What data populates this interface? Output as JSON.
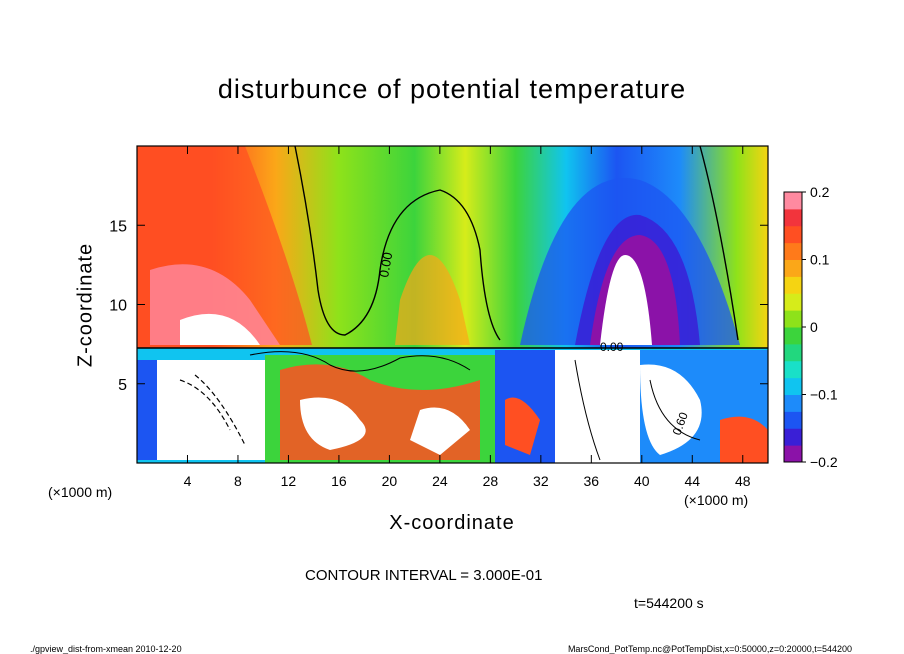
{
  "chart_data": {
    "type": "heatmap",
    "title": "disturbunce of potential temperature",
    "xlabel": "X-coordinate",
    "ylabel": "Z-coordinate",
    "x_unit_left": "(×1000 m)",
    "x_unit_right": "(×1000 m)",
    "xlim": [
      0,
      50
    ],
    "ylim": [
      0,
      20
    ],
    "x_ticks": [
      4,
      8,
      12,
      16,
      20,
      24,
      28,
      32,
      36,
      40,
      44,
      48
    ],
    "x_tick_labels": [
      "4",
      "8",
      "12",
      "16",
      "20",
      "24",
      "28",
      "32",
      "36",
      "40",
      "44",
      "48"
    ],
    "y_ticks": [
      5,
      10,
      15
    ],
    "y_tick_labels": [
      "5",
      "10",
      "15"
    ],
    "colorbar": {
      "range": [
        -0.2,
        0.2
      ],
      "ticks": [
        0.2,
        0.1,
        0,
        -0.1,
        -0.2
      ],
      "tick_labels": [
        "0.2",
        "0.1",
        "0",
        "−0.1",
        "−0.2"
      ],
      "colors": [
        "#8b12a8",
        "#3a1fd6",
        "#1c55f2",
        "#1d8bfa",
        "#10c4f0",
        "#19e0c8",
        "#22d77e",
        "#3cd43c",
        "#8ee21a",
        "#d6ec1a",
        "#f5d412",
        "#fba718",
        "#ff7a1a",
        "#ff4f22",
        "#f2343c",
        "#ff8aa0"
      ]
    },
    "contour_labels": [
      "0.00",
      "0.00",
      "0.60"
    ],
    "contour_interval_text": "CONTOUR INTERVAL = 3.000E-01",
    "time_text": "t=544200  s"
  },
  "footer": {
    "left": "./gpview_dist-from-xmean  2010-12-20",
    "right": "MarsCond_PotTemp.nc@PotTempDist,x=0:50000,z=0:20000,t=544200"
  }
}
